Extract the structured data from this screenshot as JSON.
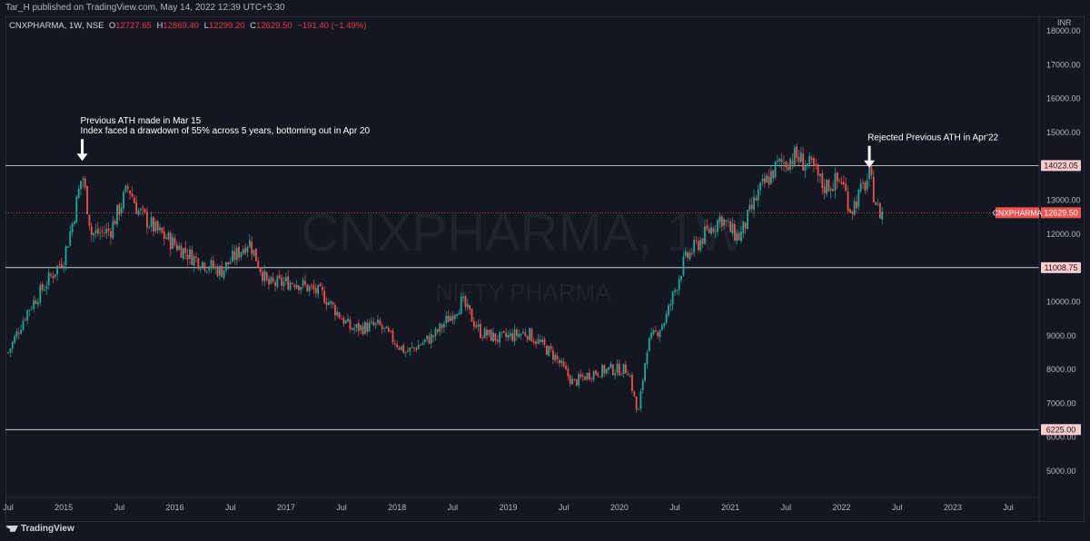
{
  "header": {
    "published": "Tar_H published on TradingView.com, May 14, 2022 12:39 UTC+5:30"
  },
  "legend": {
    "symbol": "CNXPHARMA, 1W, NSE",
    "open_label": "O",
    "open": "12727.65",
    "high_label": "H",
    "high": "12869.40",
    "low_label": "L",
    "low": "12299.20",
    "close_label": "C",
    "close": "12629.50",
    "change": "−191.40 (−1.49%)"
  },
  "watermark": {
    "symbol": "CNXPHARMA, 1W",
    "name": "NIFTY PHARMA"
  },
  "footer": {
    "brand": "TradingView"
  },
  "colors": {
    "up": "#26a69a",
    "down": "#ef5350",
    "background": "#131722",
    "level_line": "#e8e8e8",
    "level_label_bg": "#fccbcd",
    "price_label_bg": "#ef5350"
  },
  "chart_data": {
    "type": "candlestick",
    "instrument": "CNXPHARMA",
    "interval": "1W",
    "exchange": "NSE",
    "currency": "INR",
    "ylim": [
      4300,
      18400
    ],
    "x_range": [
      "2014-07",
      "2023-09"
    ],
    "y_ticks": [
      "18000.00",
      "17000.00",
      "16000.00",
      "15000.00",
      "14000.00",
      "13000.00",
      "12000.00",
      "11000.00",
      "10000.00",
      "9000.00",
      "8000.00",
      "7000.00",
      "6000.00",
      "5000.00"
    ],
    "x_ticks": [
      {
        "label": "Jul",
        "date": "2014-07"
      },
      {
        "label": "2015",
        "date": "2015-01"
      },
      {
        "label": "Jul",
        "date": "2015-07"
      },
      {
        "label": "2016",
        "date": "2016-01"
      },
      {
        "label": "Jul",
        "date": "2016-07"
      },
      {
        "label": "2017",
        "date": "2017-01"
      },
      {
        "label": "Jul",
        "date": "2017-07"
      },
      {
        "label": "2018",
        "date": "2018-01"
      },
      {
        "label": "Jul",
        "date": "2018-07"
      },
      {
        "label": "2019",
        "date": "2019-01"
      },
      {
        "label": "Jul",
        "date": "2019-07"
      },
      {
        "label": "2020",
        "date": "2020-01"
      },
      {
        "label": "Jul",
        "date": "2020-07"
      },
      {
        "label": "2021",
        "date": "2021-01"
      },
      {
        "label": "Jul",
        "date": "2021-07"
      },
      {
        "label": "2022",
        "date": "2022-01"
      },
      {
        "label": "Jul",
        "date": "2022-07"
      },
      {
        "label": "2023",
        "date": "2023-01"
      },
      {
        "label": "Jul",
        "date": "2023-07"
      }
    ],
    "horizontal_levels": [
      {
        "value": 14023.05,
        "label": "14023.05"
      },
      {
        "value": 11008.75,
        "label": "11008.75"
      },
      {
        "value": 6225.0,
        "label": "6225.00"
      }
    ],
    "last_price": {
      "value": 12629.5,
      "label": "12629.50",
      "name": "CNXPHARMA"
    },
    "annotations": [
      {
        "lines": [
          "Previous ATH made in Mar 15",
          "Index faced a drawdown of 55% across 5 years, bottoming out in Apr 20"
        ],
        "date": "2015-03",
        "value": 14000
      },
      {
        "lines": [
          "Rejected Previous ATH in Apr'22"
        ],
        "date": "2022-04",
        "value": 13800
      }
    ],
    "closes": [
      {
        "date": "2014-07",
        "close": 8500
      },
      {
        "date": "2014-09",
        "close": 9700
      },
      {
        "date": "2014-11",
        "close": 10500
      },
      {
        "date": "2015-01",
        "close": 11300
      },
      {
        "date": "2015-02",
        "close": 12400
      },
      {
        "date": "2015-03",
        "close": 13800
      },
      {
        "date": "2015-04",
        "close": 12000
      },
      {
        "date": "2015-06",
        "close": 12100
      },
      {
        "date": "2015-08",
        "close": 13400
      },
      {
        "date": "2015-09",
        "close": 12700
      },
      {
        "date": "2015-11",
        "close": 12100
      },
      {
        "date": "2016-01",
        "close": 11700
      },
      {
        "date": "2016-03",
        "close": 11300
      },
      {
        "date": "2016-06",
        "close": 10900
      },
      {
        "date": "2016-09",
        "close": 11800
      },
      {
        "date": "2016-11",
        "close": 10500
      },
      {
        "date": "2017-02",
        "close": 10600
      },
      {
        "date": "2017-05",
        "close": 10200
      },
      {
        "date": "2017-08",
        "close": 9200
      },
      {
        "date": "2017-11",
        "close": 9300
      },
      {
        "date": "2018-02",
        "close": 8500
      },
      {
        "date": "2018-05",
        "close": 9000
      },
      {
        "date": "2018-08",
        "close": 10000
      },
      {
        "date": "2018-10",
        "close": 9100
      },
      {
        "date": "2018-12",
        "close": 8900
      },
      {
        "date": "2019-03",
        "close": 9100
      },
      {
        "date": "2019-06",
        "close": 8400
      },
      {
        "date": "2019-08",
        "close": 7600
      },
      {
        "date": "2019-10",
        "close": 7900
      },
      {
        "date": "2019-12",
        "close": 8000
      },
      {
        "date": "2020-02",
        "close": 8000
      },
      {
        "date": "2020-03",
        "close": 6600
      },
      {
        "date": "2020-04",
        "close": 8700
      },
      {
        "date": "2020-06",
        "close": 9500
      },
      {
        "date": "2020-08",
        "close": 11200
      },
      {
        "date": "2020-10",
        "close": 11900
      },
      {
        "date": "2020-12",
        "close": 12500
      },
      {
        "date": "2021-01",
        "close": 12100
      },
      {
        "date": "2021-02",
        "close": 11900
      },
      {
        "date": "2021-04",
        "close": 13200
      },
      {
        "date": "2021-06",
        "close": 14000
      },
      {
        "date": "2021-08",
        "close": 14300
      },
      {
        "date": "2021-10",
        "close": 13900
      },
      {
        "date": "2021-11",
        "close": 13400
      },
      {
        "date": "2022-01",
        "close": 13600
      },
      {
        "date": "2022-02",
        "close": 12700
      },
      {
        "date": "2022-04",
        "close": 13700
      },
      {
        "date": "2022-05",
        "close": 12630
      }
    ]
  }
}
